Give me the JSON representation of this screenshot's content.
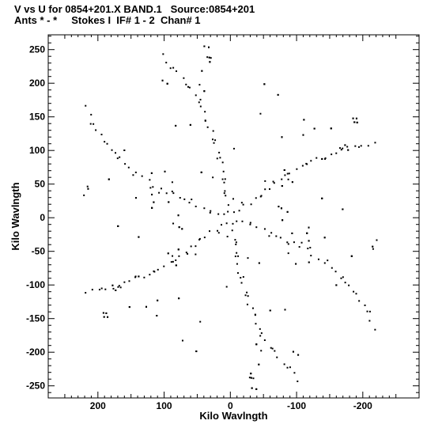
{
  "header": {
    "line1": "V vs U for 0854+201.X BAND.1   Source:0854+201",
    "line2": "Ants * - *     Stokes I  IF# 1 - 2  Chan# 1"
  },
  "colors": {
    "points": "#000000",
    "axes": "#000000",
    "background": "#ffffff"
  },
  "chart_data": {
    "type": "scatter",
    "title": "",
    "xlabel": "Kilo Wavlngth",
    "ylabel": "Kilo Wavlngth",
    "x_reversed": true,
    "xlim": [
      275,
      -285
    ],
    "ylim": [
      -268,
      272
    ],
    "xticks": [
      200,
      100,
      0,
      -100,
      -200
    ],
    "xtick_labels": [
      "200",
      "100",
      "0",
      "-100",
      "-200"
    ],
    "yticks": [
      250,
      200,
      150,
      100,
      50,
      0,
      -50,
      -100,
      -150,
      -200,
      -250
    ],
    "ytick_labels": [
      "250",
      "200",
      "150",
      "100",
      "50",
      "0",
      "-50",
      "-100",
      "-150",
      "-200",
      "-250"
    ],
    "grid": false,
    "legend": "none",
    "points_model": {
      "description_of_pattern": "snowflake uv coverage",
      "arm_angles_deg": [
        19,
        81,
        142
      ],
      "arm_lengths": [
        272,
        262,
        243
      ],
      "arm_curvature": [
        0.1,
        -0.08,
        0.06
      ],
      "steps": 26,
      "extra_scatter_count": 260,
      "scatter_radius": 200,
      "seed": 854201
    }
  }
}
